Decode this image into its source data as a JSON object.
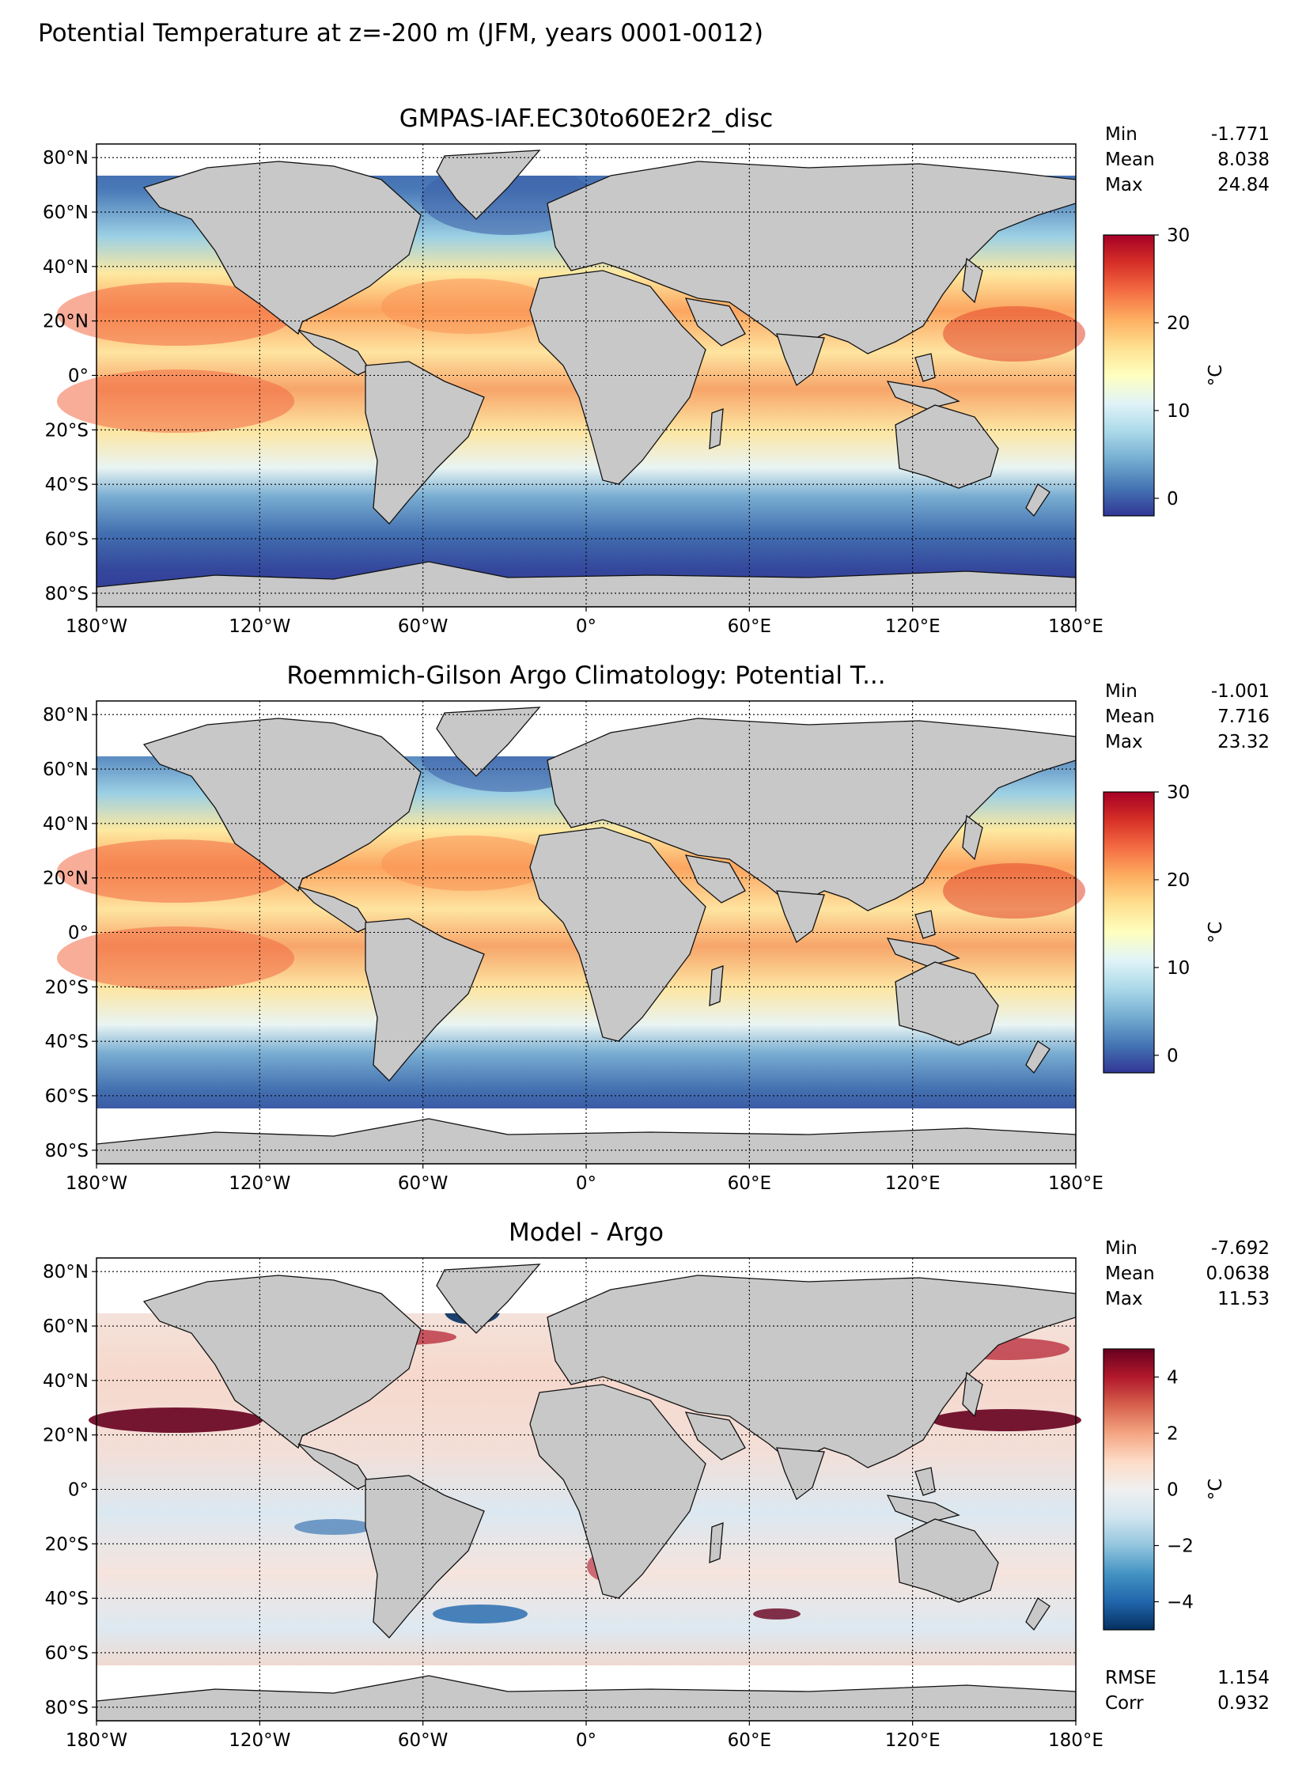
{
  "figure_title": "Potential Temperature at z=-200 m (JFM, years 0001-0012)",
  "x_ticks": [
    "180°W",
    "120°W",
    "60°W",
    "0°",
    "60°E",
    "120°E",
    "180°E"
  ],
  "y_ticks": [
    "80°N",
    "60°N",
    "40°N",
    "20°N",
    "0°",
    "20°S",
    "40°S",
    "60°S",
    "80°S"
  ],
  "panels": [
    {
      "title": "GMPAS-IAF.EC30to60E2r2_disc",
      "stats": [
        {
          "label": "Min",
          "value": "-1.771"
        },
        {
          "label": "Mean",
          "value": "8.038"
        },
        {
          "label": "Max",
          "value": "24.84"
        }
      ],
      "colorbar": {
        "ticks": [
          "0",
          "10",
          "20",
          "30"
        ],
        "unit": "°C",
        "range": [
          -2,
          30
        ],
        "cmap": "RdYlBu_r"
      },
      "extra_stats": []
    },
    {
      "title": "Roemmich-Gilson Argo Climatology: Potential T...",
      "stats": [
        {
          "label": "Min",
          "value": "-1.001"
        },
        {
          "label": "Mean",
          "value": "7.716"
        },
        {
          "label": "Max",
          "value": "23.32"
        }
      ],
      "colorbar": {
        "ticks": [
          "0",
          "10",
          "20",
          "30"
        ],
        "unit": "°C",
        "range": [
          -2,
          30
        ],
        "cmap": "RdYlBu_r"
      },
      "extra_stats": []
    },
    {
      "title": "Model - Argo",
      "stats": [
        {
          "label": "Min",
          "value": "-7.692"
        },
        {
          "label": "Mean",
          "value": "0.0638"
        },
        {
          "label": "Max",
          "value": "11.53"
        }
      ],
      "colorbar": {
        "ticks": [
          "4",
          "2",
          "0",
          "−2",
          "−4"
        ],
        "unit": "°C",
        "range": [
          -5,
          5
        ],
        "cmap": "RdBu_r"
      },
      "extra_stats": [
        {
          "label": "RMSE",
          "value": "1.154"
        },
        {
          "label": "Corr",
          "value": "0.932"
        }
      ]
    }
  ],
  "colors": {
    "land": "#c8c8c8",
    "no_data": "#ffffff",
    "seq_cmap": [
      "#313695",
      "#4575b4",
      "#74add1",
      "#abd9e9",
      "#e0f3f8",
      "#ffffbf",
      "#fee090",
      "#fdae61",
      "#f46d43",
      "#d73027",
      "#a50026"
    ],
    "div_cmap": [
      "#053061",
      "#2166ac",
      "#4393c3",
      "#92c5de",
      "#d1e5f0",
      "#f0f0f0",
      "#fddbc7",
      "#f4a582",
      "#d6604d",
      "#b2182b",
      "#67001f"
    ]
  }
}
